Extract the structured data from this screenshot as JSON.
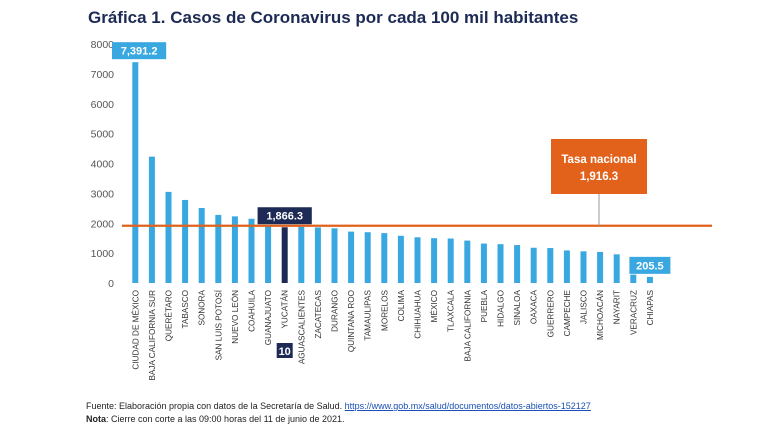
{
  "title": "Gráfica 1. Casos de Coronavirus por cada 100 mil habitantes",
  "colors": {
    "bar": "#3aa8e0",
    "highlight_bar": "#1c2a55",
    "reference_line": "#e2621b",
    "callout_blue": "#3aa8e0",
    "callout_dark": "#1c2a55",
    "callout_orange": "#e2621b",
    "axis_text": "#555555",
    "title": "#1c2a55"
  },
  "chart_data": {
    "type": "bar",
    "title": "Gráfica 1. Casos de Coronavirus por cada 100 mil habitantes",
    "xlabel": "",
    "ylabel": "",
    "ylim": [
      0,
      8000
    ],
    "yticks": [
      0,
      1000,
      2000,
      3000,
      4000,
      5000,
      6000,
      7000,
      8000
    ],
    "ytick_labels": [
      "0",
      "1000",
      "2000",
      "3000",
      "4000",
      "5000",
      "6000",
      "7000",
      "8000"
    ],
    "grid": false,
    "categories": [
      "CIUDAD DE MÉXICO",
      "BAJA CALIFORNIA SUR",
      "QUERÉTARO",
      "TABASCO",
      "SONORA",
      "SAN LUIS POTOSÍ",
      "NUEVO LEÓN",
      "COAHUILA",
      "GUANAJUATO",
      "YUCATÁN",
      "AGUASCALIENTES",
      "ZACATECAS",
      "DURANGO",
      "QUINTANA ROO",
      "TAMAULIPAS",
      "MORELOS",
      "COLIMA",
      "CHIHUAHUA",
      "MÉXICO",
      "TLAXCALA",
      "BAJA CALIFORNIA",
      "PUEBLA",
      "HIDALGO",
      "SINALOA",
      "OAXACA",
      "GUERRERO",
      "CAMPECHE",
      "JALISCO",
      "MICHOACÁN",
      "NAYARIT",
      "VERACRUZ",
      "CHIAPAS"
    ],
    "values": [
      7391.2,
      4230,
      3050,
      2780,
      2510,
      2280,
      2230,
      2150,
      1900,
      1866.3,
      1880,
      1860,
      1830,
      1720,
      1700,
      1670,
      1580,
      1530,
      1500,
      1490,
      1420,
      1320,
      1300,
      1270,
      1180,
      1170,
      1090,
      1060,
      1040,
      960,
      280,
      205.5
    ],
    "highlight_index": 9,
    "data_labels": [
      {
        "index": 0,
        "text": "7,391.2"
      },
      {
        "index": 9,
        "text": "1,866.3"
      },
      {
        "index": 31,
        "text": "205.5"
      }
    ],
    "rank_badge": {
      "index": 9,
      "text": "10"
    },
    "reference_line": {
      "value": 1916.3,
      "label": "Tasa nacional",
      "value_label": "1,916.3"
    }
  },
  "footer": {
    "source_prefix": "Fuente: Elaboración propia con datos de la Secretaría de Salud. ",
    "source_url": "https://www.gob.mx/salud/documentos/datos-abiertos-152127",
    "note_label": "Nota",
    "note_text": ": Cierre con corte a las 09:00 horas del 11 de junio de 2021."
  }
}
